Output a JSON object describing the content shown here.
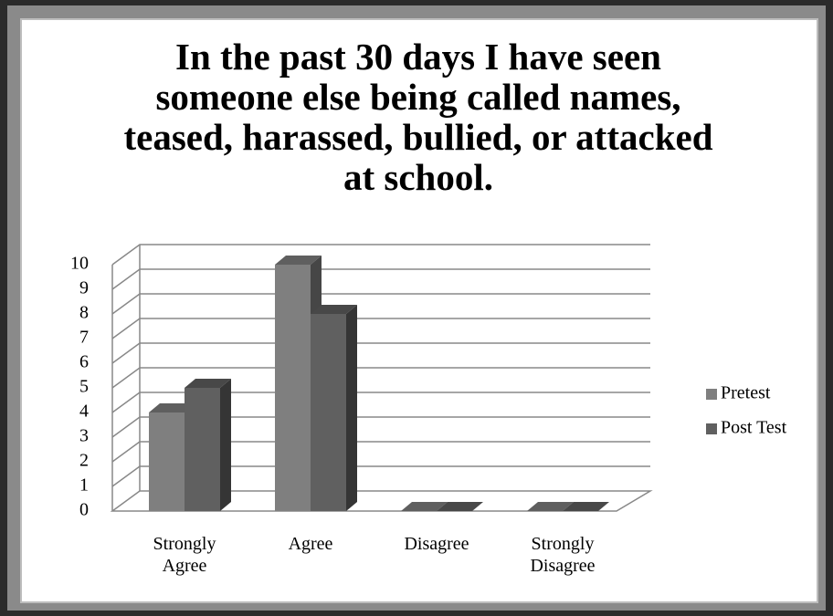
{
  "chart_data": {
    "type": "bar3d",
    "title": "In the past 30 days I have seen someone else being called names, teased, harassed, bullied, or attacked at school.",
    "categories": [
      "Strongly Agree",
      "Agree",
      "Disagree",
      "Strongly Disagree"
    ],
    "series": [
      {
        "name": "Pretest",
        "color": "#7f7f7f",
        "values": [
          4,
          10,
          0,
          0
        ]
      },
      {
        "name": "Post Test",
        "color": "#606060",
        "values": [
          5,
          8,
          0,
          0
        ]
      }
    ],
    "ylim": [
      0,
      10
    ],
    "yticks": [
      0,
      1,
      2,
      3,
      4,
      5,
      6,
      7,
      8,
      9,
      10
    ],
    "grid": true,
    "legend": "right"
  }
}
